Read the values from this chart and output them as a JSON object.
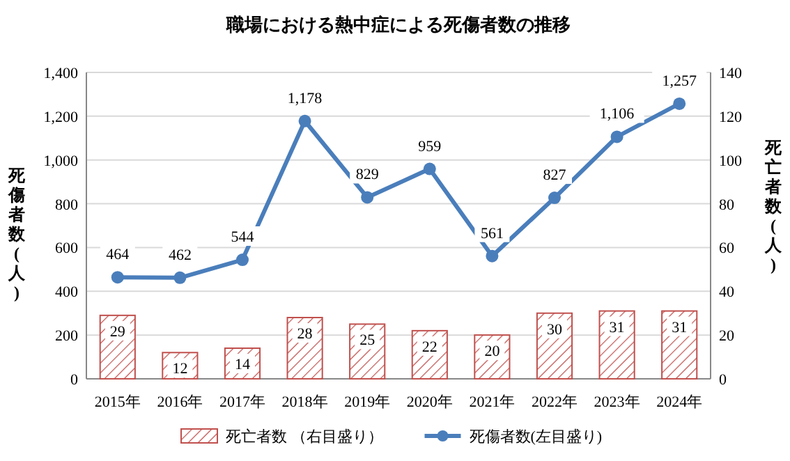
{
  "chart_data": {
    "type": "bar",
    "title": "職場における熱中症による死傷者数の推移",
    "categories": [
      "2015年",
      "2016年",
      "2017年",
      "2018年",
      "2019年",
      "2020年",
      "2021年",
      "2022年",
      "2023年",
      "2024年"
    ],
    "series": [
      {
        "name": "死亡者数 （右目盛り）",
        "axis": "y2",
        "color": "#c0504d",
        "values": [
          29,
          12,
          14,
          28,
          25,
          22,
          20,
          30,
          31,
          31
        ],
        "value_labels": [
          "29",
          "12",
          "14",
          "28",
          "25",
          "22",
          "20",
          "30",
          "31",
          "31"
        ]
      },
      {
        "name": "死傷者数(左目盛り)",
        "type": "line",
        "axis": "y",
        "color": "#4a7ebb",
        "marker": "circle",
        "line_style": "solid",
        "values": [
          464,
          462,
          544,
          1178,
          829,
          959,
          561,
          827,
          1106,
          1257
        ],
        "value_labels": [
          "464",
          "462",
          "544",
          "1,178",
          "829",
          "959",
          "561",
          "827",
          "1,106",
          "1,257"
        ]
      }
    ],
    "ylabel": "死傷者数(人)",
    "y2label": "死亡者数(人)",
    "ylim": [
      0,
      1400
    ],
    "yticks": [
      0,
      200,
      400,
      600,
      800,
      {
        "value": 1000,
        "label": "1,000"
      },
      {
        "value": 1200,
        "label": "1,200"
      },
      {
        "value": 1400,
        "label": "1,400"
      }
    ],
    "y2lim": [
      0,
      140
    ],
    "y2ticks": [
      0,
      20,
      40,
      60,
      80,
      100,
      120,
      140
    ],
    "grid": "y",
    "legend": "bottom"
  }
}
